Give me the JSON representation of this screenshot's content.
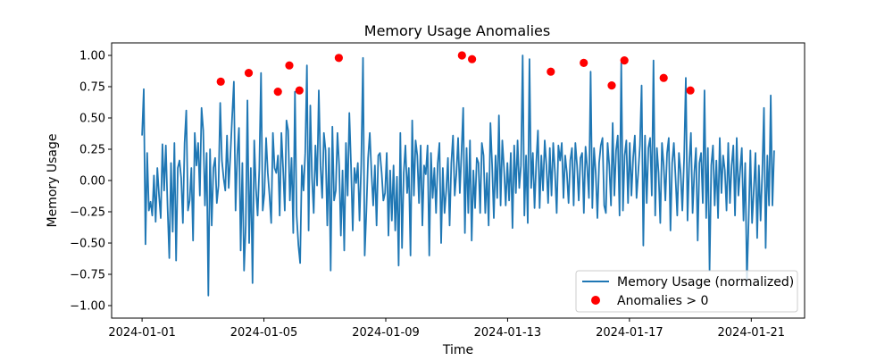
{
  "chart_data": {
    "type": "line",
    "title": "Memory Usage Anomalies",
    "xlabel": "Time",
    "ylabel": "Memory Usage",
    "x_range": [
      "2024-01-01",
      "2024-01-21"
    ],
    "xlim": [
      "2023-12-31T00:00",
      "2024-01-22T18:00"
    ],
    "ylim": [
      -1.1,
      1.1
    ],
    "x_ticks": [
      "2024-01-01",
      "2024-01-05",
      "2024-01-09",
      "2024-01-13",
      "2024-01-17",
      "2024-01-21"
    ],
    "y_ticks": [
      "−1.00",
      "−0.75",
      "−0.50",
      "−0.25",
      "0.00",
      "0.25",
      "0.50",
      "0.75",
      "1.00"
    ],
    "grid": false,
    "legend_position": "lower-right",
    "legend": [
      "Memory Usage (normalized)",
      "Anomalies > 0"
    ],
    "colors": {
      "line": "#1f77b4",
      "anomaly": "#ff0000"
    },
    "series": [
      {
        "name": "Memory Usage (normalized)",
        "kind": "line",
        "values": [
          0.36,
          0.73,
          -0.51,
          0.22,
          -0.24,
          -0.17,
          -0.28,
          0.04,
          -0.33,
          0.1,
          -0.12,
          -0.3,
          0.29,
          -0.08,
          0.28,
          -0.2,
          -0.62,
          0.14,
          -0.41,
          0.3,
          -0.64,
          0.1,
          0.16,
          0.02,
          -0.34,
          0.3,
          0.56,
          -0.24,
          -0.16,
          0.1,
          -0.48,
          0.38,
          0.12,
          0.3,
          -0.12,
          0.58,
          0.4,
          -0.2,
          0.22,
          -0.92,
          0.25,
          -0.36,
          0.1,
          0.18,
          -0.18,
          -0.04,
          0.62,
          0.16,
          0.02,
          -0.08,
          0.36,
          -0.06,
          0.2,
          0.5,
          0.79,
          -0.24,
          0.2,
          0.42,
          -0.56,
          0.14,
          -0.72,
          -0.36,
          0.64,
          -0.5,
          0.1,
          -0.82,
          0.32,
          -0.06,
          -0.28,
          0.1,
          0.86,
          -0.24,
          -0.1,
          0.34,
          0.06,
          -0.12,
          -0.34,
          0.38,
          0.1,
          0.06,
          0.2,
          -0.28,
          0.38,
          0.1,
          -0.24,
          0.48,
          0.4,
          -0.16,
          0.18,
          -0.42,
          0.71,
          -0.28,
          -0.52,
          -0.66,
          0.12,
          -0.08,
          0.22,
          0.92,
          -0.4,
          0.6,
          0.02,
          -0.26,
          0.28,
          -0.04,
          0.72,
          0.12,
          -0.14,
          0.38,
          0.24,
          -0.36,
          0.26,
          -0.72,
          0.43,
          -0.16,
          -0.08,
          0.38,
          0.12,
          -0.44,
          0.08,
          -0.56,
          0.3,
          -0.12,
          0.54,
          0.12,
          -0.4,
          0.1,
          -0.02,
          0.14,
          -0.32,
          0.12,
          0.98,
          -0.6,
          -0.24,
          0.18,
          0.38,
          0.06,
          -0.2,
          0.12,
          -0.36,
          0.2,
          0.22,
          0.06,
          -0.16,
          -0.1,
          0.22,
          -0.44,
          0.08,
          -0.32,
          0.12,
          -0.4,
          0.03,
          -0.68,
          0.38,
          -0.54,
          0.06,
          0.28,
          -0.1,
          0.1,
          -0.6,
          0.48,
          -0.12,
          0.32,
          0.2,
          -0.18,
          0.28,
          -0.36,
          0.12,
          0.05,
          0.28,
          -0.6,
          0.22,
          -0.14,
          0.1,
          -0.26,
          0.14,
          0.3,
          -0.5,
          0.1,
          -0.26,
          -0.08,
          0.18,
          -0.36,
          0.14,
          0.36,
          -0.12,
          0.06,
          0.34,
          -0.1,
          0.22,
          0.58,
          -0.42,
          0.26,
          -0.26,
          0.32,
          -0.48,
          0.08,
          -0.22,
          0.18,
          0.14,
          -0.26,
          0.3,
          0.2,
          -0.26,
          0.06,
          -0.36,
          0.46,
          0.12,
          -0.3,
          0.2,
          -0.14,
          0.52,
          -0.2,
          0.32,
          0.1,
          -0.2,
          0.14,
          -0.16,
          0.22,
          -0.38,
          0.28,
          -0.1,
          0.32,
          -0.06,
          0.12,
          1.0,
          -0.28,
          0.2,
          -0.34,
          0.97,
          -0.06,
          0.22,
          -0.22,
          0.14,
          0.4,
          -0.22,
          0.2,
          -0.08,
          0.32,
          0.12,
          -0.18,
          0.26,
          -0.12,
          0.3,
          0.06,
          -0.26,
          0.28,
          0.16,
          0.3,
          -0.14,
          0.2,
          0.06,
          -0.18,
          0.16,
          0.26,
          -0.2,
          0.3,
          0.12,
          -0.16,
          0.18,
          0.22,
          -0.26,
          0.27,
          0.1,
          -0.14,
          0.87,
          -0.22,
          0.26,
          0.06,
          -0.3,
          0.14,
          0.28,
          0.34,
          -0.2,
          -0.26,
          0.3,
          0.12,
          -0.2,
          0.46,
          -0.12,
          0.24,
          0.36,
          -0.28,
          0.94,
          -0.24,
          0.2,
          0.32,
          -0.18,
          0.3,
          -0.12,
          0.18,
          0.36,
          -0.14,
          0.06,
          0.28,
          0.76,
          -0.52,
          0.36,
          -0.18,
          0.26,
          0.34,
          -0.12,
          0.96,
          -0.28,
          0.26,
          0.06,
          -0.34,
          0.3,
          0.12,
          -0.16,
          0.22,
          0.34,
          -0.4,
          0.14,
          0.3,
          0.02,
          -0.28,
          0.22,
          0.06,
          -0.24,
          0.18,
          0.82,
          -0.32,
          0.14,
          0.38,
          -0.26,
          0.06,
          0.26,
          -0.48,
          0.14,
          0.22,
          -0.18,
          0.72,
          -0.3,
          0.26,
          -0.72,
          0.12,
          0.28,
          -0.2,
          0.16,
          -0.3,
          0.34,
          -0.1,
          0.2,
          0.08,
          -0.24,
          0.3,
          -0.18,
          0.12,
          0.28,
          -0.28,
          0.34,
          -0.12,
          0.08,
          0.26,
          -0.32,
          0.14,
          -0.8,
          -0.3,
          0.24,
          -0.34,
          -0.08,
          0.22,
          -0.46,
          0.12,
          -0.32,
          0.06,
          0.58,
          -0.54,
          0.2,
          -0.2,
          0.68,
          -0.2,
          0.24
        ]
      },
      {
        "name": "Anomalies > 0",
        "kind": "scatter",
        "points": [
          {
            "x": "2024-01-03 14:00",
            "y": 0.79
          },
          {
            "x": "2024-01-04 12:00",
            "y": 0.86
          },
          {
            "x": "2024-01-05 11:00",
            "y": 0.71
          },
          {
            "x": "2024-01-05 20:00",
            "y": 0.92
          },
          {
            "x": "2024-01-06 04:00",
            "y": 0.72
          },
          {
            "x": "2024-01-07 11:00",
            "y": 0.98
          },
          {
            "x": "2024-01-11 12:00",
            "y": 1.0
          },
          {
            "x": "2024-01-11 20:00",
            "y": 0.97
          },
          {
            "x": "2024-01-14 10:00",
            "y": 0.87
          },
          {
            "x": "2024-01-15 12:00",
            "y": 0.94
          },
          {
            "x": "2024-01-16 10:00",
            "y": 0.76
          },
          {
            "x": "2024-01-16 20:00",
            "y": 0.96
          },
          {
            "x": "2024-01-18 03:00",
            "y": 0.82
          },
          {
            "x": "2024-01-19 00:00",
            "y": 0.72
          }
        ]
      }
    ]
  }
}
